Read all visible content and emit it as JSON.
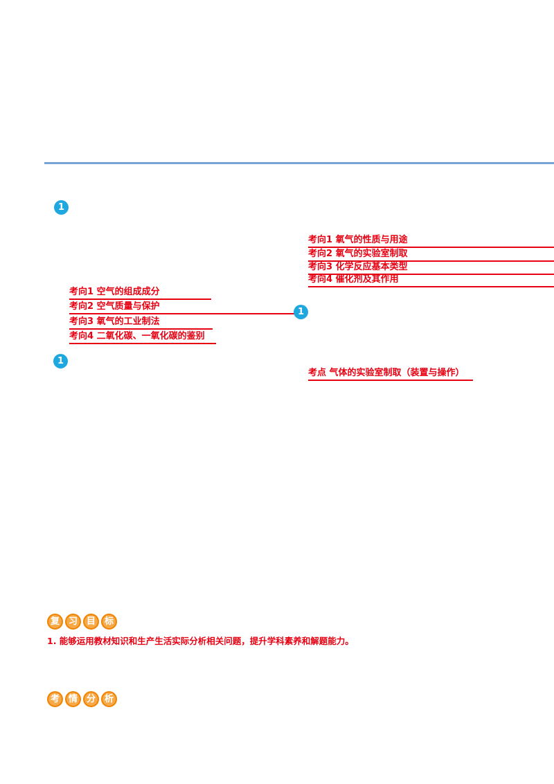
{
  "page": {
    "background": "#ffffff",
    "colors": {
      "divider_blue": "#7aa3d5",
      "marker_blue": "#1fa8e0",
      "text_red": "#e60012",
      "badge_orange": "#f7a948",
      "badge_border_orange": "#f08300"
    }
  },
  "markers": [
    {
      "label": "1"
    },
    {
      "label": "1"
    },
    {
      "label": "1"
    }
  ],
  "right_exam_directions": {
    "items": [
      {
        "label": "考向1 氧气的性质与用途"
      },
      {
        "label": "考向2 氧气的实验室制取"
      },
      {
        "label": "考向3 化学反应基本类型"
      },
      {
        "label": "考向4 催化剂及其作用"
      }
    ]
  },
  "left_exam_directions": {
    "items": [
      {
        "label": "考向1 空气的组成成分"
      },
      {
        "label": "考向2 空气质量与保护"
      },
      {
        "label": "考向3 氧气的工业制法"
      },
      {
        "label": "考向4 二氧化碳、一氧化碳的鉴别"
      }
    ]
  },
  "exam_point": {
    "label": "考点 气体的实验室制取（装置与操作）"
  },
  "review_goal": {
    "badge_chars": [
      "复",
      "习",
      "目",
      "标"
    ],
    "text": "1. 能够运用教材知识和生产生活实际分析相关问题，提升学科素养和解题能力。"
  },
  "exam_analysis": {
    "badge_chars": [
      "考",
      "情",
      "分",
      "析"
    ]
  }
}
